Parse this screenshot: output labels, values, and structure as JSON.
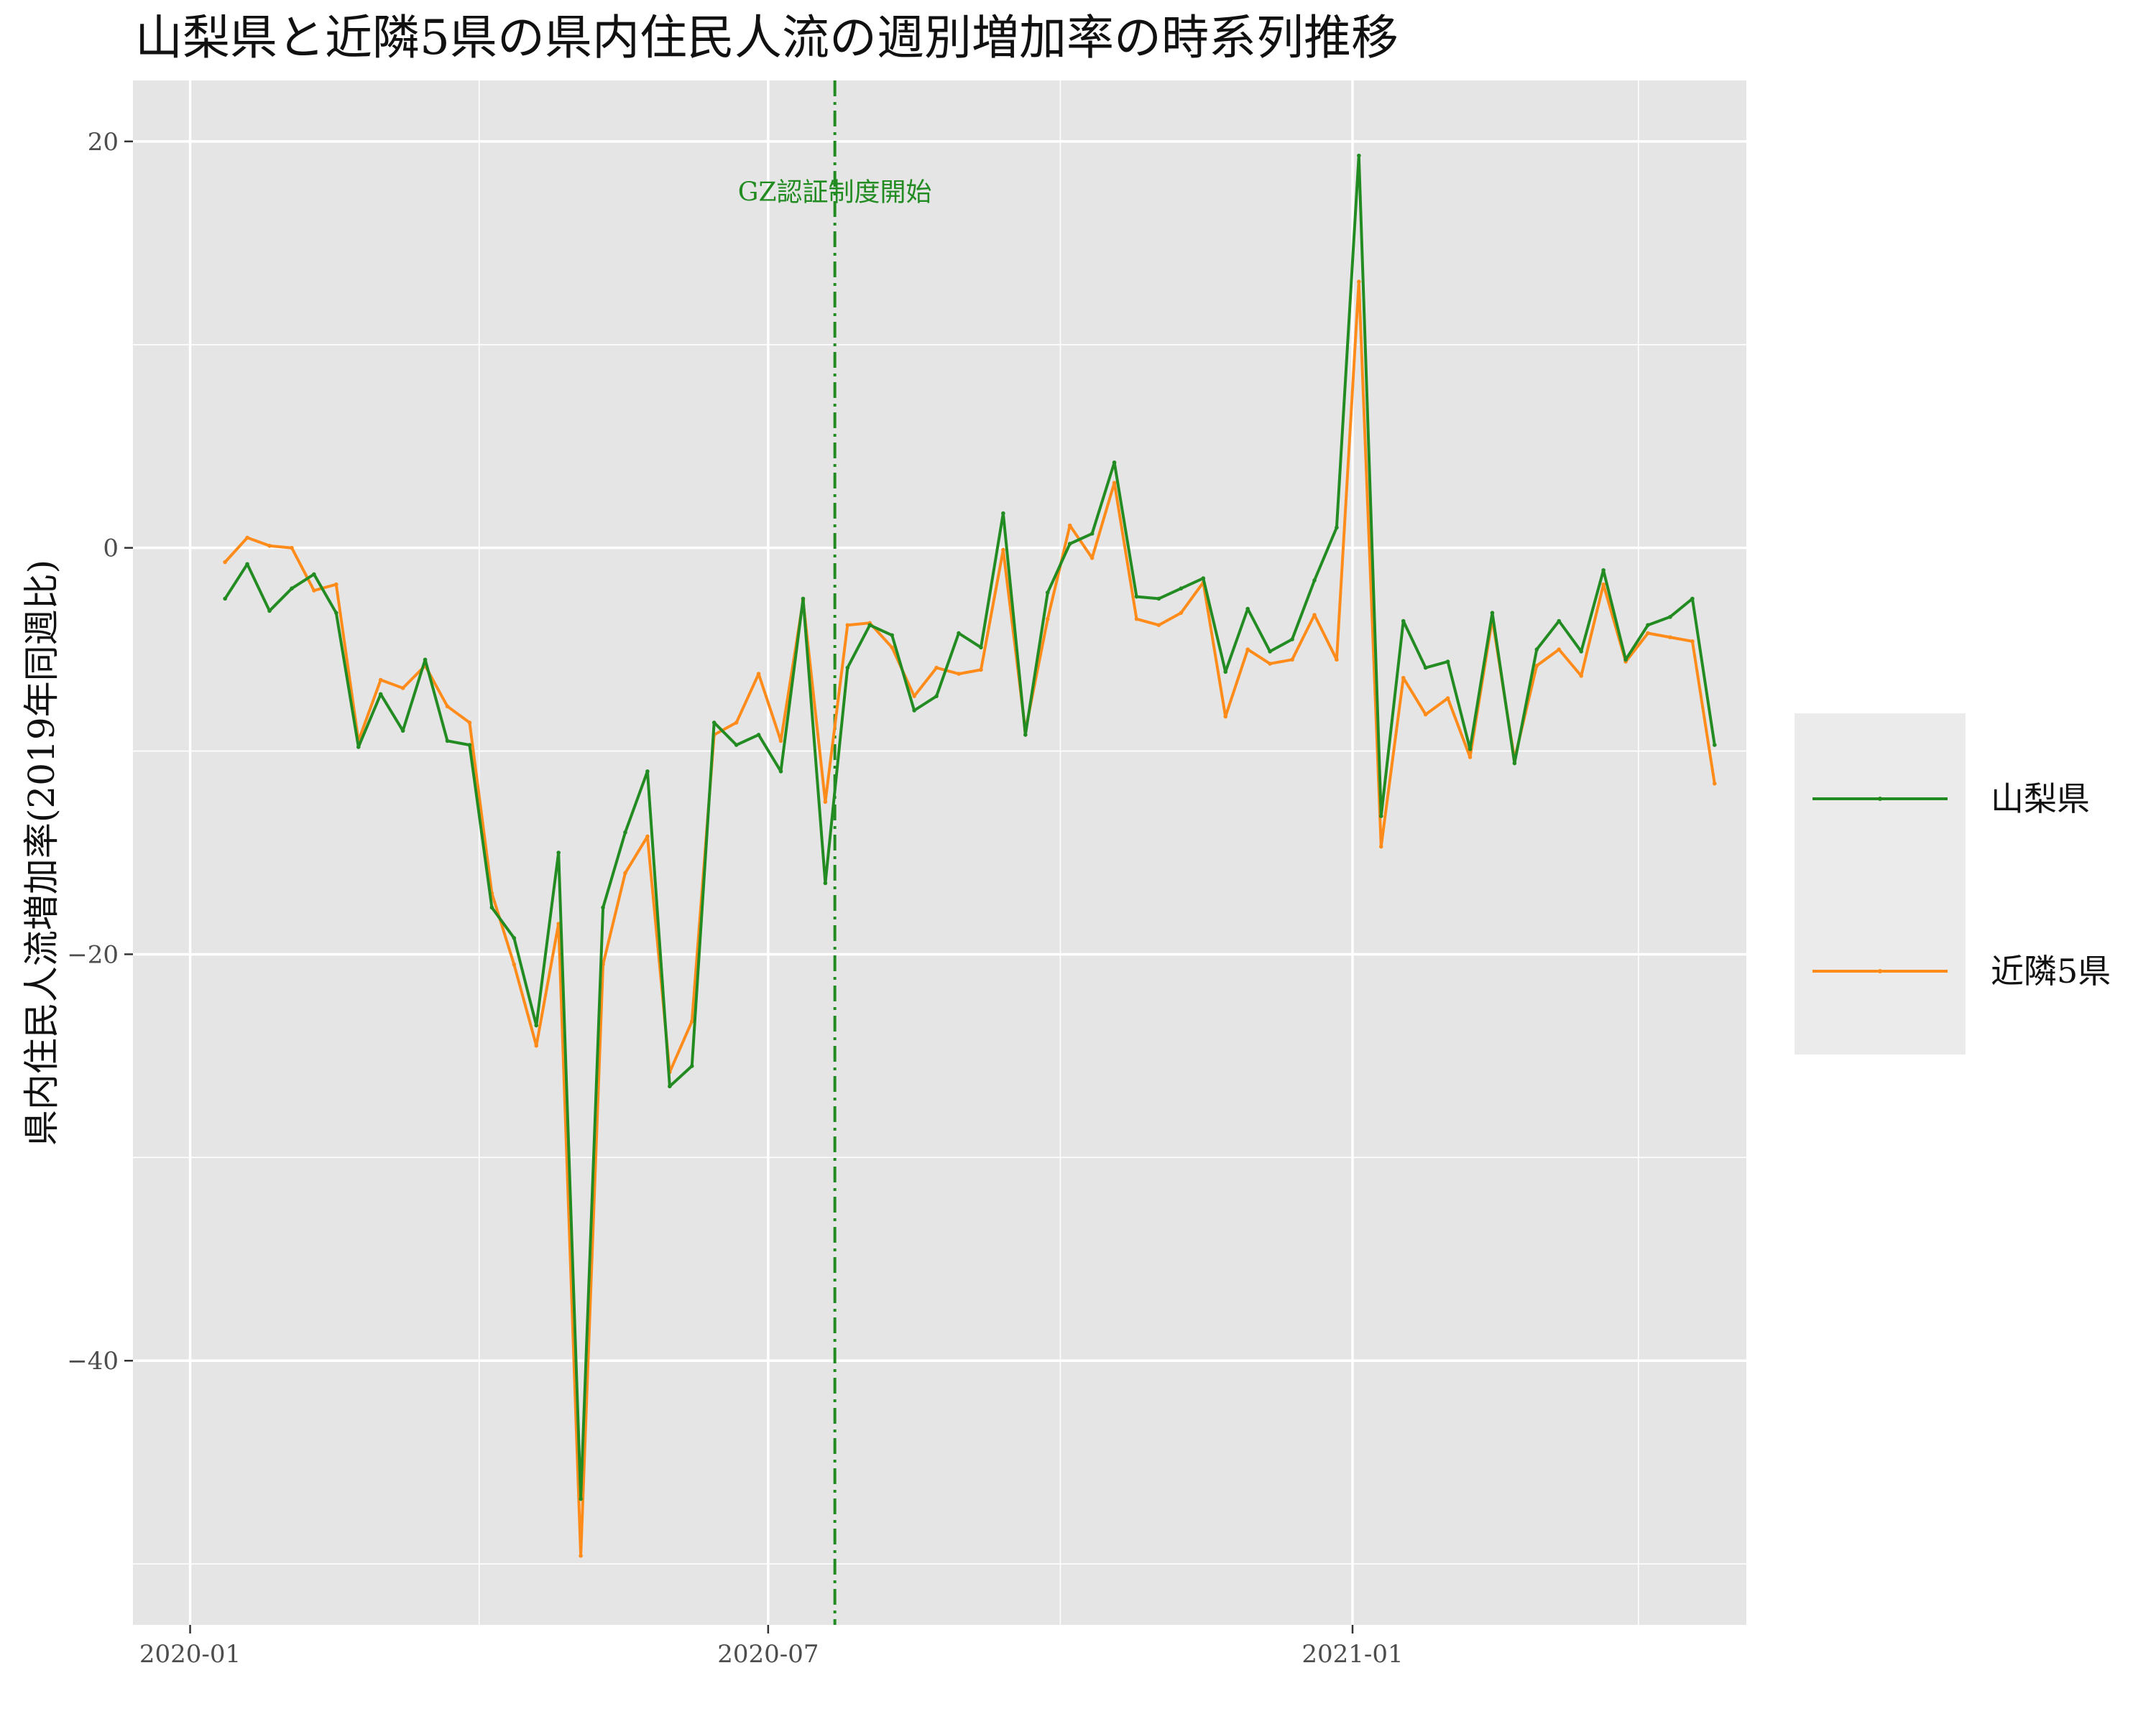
{
  "chart_data": {
    "type": "line",
    "title": "山梨県と近隣5県の県内住民人流の週別増加率の時系列推移",
    "xlabel": "",
    "ylabel": "県内住民人流増加率(2019年同週比)",
    "x_tick_labels": [
      "2020-01",
      "2020-07",
      "2021-01"
    ],
    "y_ticks": [
      20,
      0,
      -20,
      -40
    ],
    "y_tick_labels": [
      "20",
      "0",
      "−20",
      "−40"
    ],
    "xlim": [
      "2019-12-14",
      "2021-05-05"
    ],
    "ylim": [
      -53,
      23
    ],
    "grid": true,
    "legend_position": "right",
    "annotation": {
      "text": "GZ認証制度開始",
      "x": "2020-07-22",
      "y": 17.5,
      "line_color": "#228B22"
    },
    "x": [
      "2020-01-12",
      "2020-01-19",
      "2020-01-26",
      "2020-02-02",
      "2020-02-09",
      "2020-02-16",
      "2020-02-23",
      "2020-03-01",
      "2020-03-08",
      "2020-03-15",
      "2020-03-22",
      "2020-03-29",
      "2020-04-05",
      "2020-04-12",
      "2020-04-19",
      "2020-04-26",
      "2020-05-03",
      "2020-05-10",
      "2020-05-17",
      "2020-05-24",
      "2020-05-31",
      "2020-06-07",
      "2020-06-14",
      "2020-06-21",
      "2020-06-28",
      "2020-07-05",
      "2020-07-12",
      "2020-07-19",
      "2020-07-26",
      "2020-08-02",
      "2020-08-09",
      "2020-08-16",
      "2020-08-23",
      "2020-08-30",
      "2020-09-06",
      "2020-09-13",
      "2020-09-20",
      "2020-09-27",
      "2020-10-04",
      "2020-10-11",
      "2020-10-18",
      "2020-10-25",
      "2020-11-01",
      "2020-11-08",
      "2020-11-15",
      "2020-11-22",
      "2020-11-29",
      "2020-12-06",
      "2020-12-13",
      "2020-12-20",
      "2020-12-27",
      "2021-01-03",
      "2021-01-10",
      "2021-01-17",
      "2021-01-24",
      "2021-01-31",
      "2021-02-07",
      "2021-02-14",
      "2021-02-21",
      "2021-02-28",
      "2021-03-07",
      "2021-03-14",
      "2021-03-21",
      "2021-03-28",
      "2021-04-04",
      "2021-04-11",
      "2021-04-18",
      "2021-04-25"
    ],
    "series": [
      {
        "name": "山梨県",
        "color": "#228B22",
        "values": [
          -2.5,
          -0.8,
          -3.1,
          -2.0,
          -1.3,
          -3.2,
          -9.8,
          -7.2,
          -9.0,
          -5.5,
          -9.5,
          -9.7,
          -17.7,
          -19.2,
          -23.5,
          -15.0,
          -46.8,
          -17.7,
          -14.0,
          -11.0,
          -26.5,
          -25.5,
          -8.6,
          -9.7,
          -9.2,
          -11.0,
          -2.5,
          -16.5,
          -5.9,
          -3.8,
          -4.3,
          -8.0,
          -7.3,
          -4.2,
          -4.9,
          1.7,
          -9.2,
          -2.2,
          0.2,
          0.7,
          4.2,
          -2.4,
          -2.5,
          -2.0,
          -1.5,
          -6.1,
          -3.0,
          -5.1,
          -4.5,
          -1.6,
          1.0,
          19.3,
          -13.2,
          -3.6,
          -5.9,
          -5.6,
          -9.9,
          -3.2,
          -10.6,
          -5.0,
          -3.6,
          -5.1,
          -1.1,
          -5.5,
          -3.8,
          -3.4,
          -2.5,
          -9.7
        ]
      },
      {
        "name": "近隣5県",
        "color": "#FF8C1A",
        "values": [
          -0.7,
          0.5,
          0.1,
          0.0,
          -2.1,
          -1.8,
          -9.5,
          -6.5,
          -6.9,
          -5.8,
          -7.8,
          -8.6,
          -17.0,
          -20.5,
          -24.5,
          -18.5,
          -49.6,
          -20.5,
          -16.0,
          -14.2,
          -25.8,
          -23.3,
          -9.2,
          -8.6,
          -6.2,
          -9.5,
          -2.6,
          -12.5,
          -3.8,
          -3.7,
          -4.9,
          -7.3,
          -5.9,
          -6.2,
          -6.0,
          -0.1,
          -9.0,
          -3.5,
          1.1,
          -0.5,
          3.2,
          -3.5,
          -3.8,
          -3.2,
          -1.7,
          -8.3,
          -5.0,
          -5.7,
          -5.5,
          -3.3,
          -5.5,
          13.1,
          -14.7,
          -6.4,
          -8.2,
          -7.4,
          -10.3,
          -3.5,
          -10.4,
          -5.8,
          -5.0,
          -6.3,
          -1.8,
          -5.6,
          -4.2,
          -4.4,
          -4.6,
          -11.6
        ]
      }
    ]
  }
}
